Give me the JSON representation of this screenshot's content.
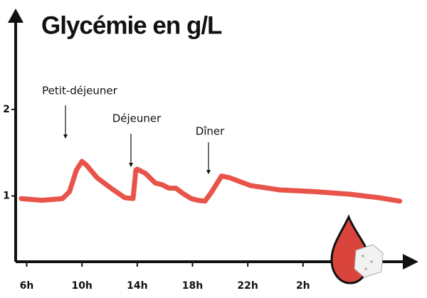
{
  "chart_data": {
    "type": "line",
    "title": "Glycémie en g/L",
    "x": [
      5.6,
      7.1,
      8.6,
      9.1,
      9.6,
      10.0,
      10.3,
      11.1,
      12.1,
      13.1,
      13.7,
      13.9,
      14.0,
      14.6,
      15.3,
      15.8,
      16.3,
      16.8,
      17.3,
      17.9,
      18.4,
      18.9,
      19.4,
      20.1,
      20.7,
      22.2,
      24.3,
      26.8,
      29.4,
      31.5,
      33.0
    ],
    "values": [
      0.97,
      0.95,
      0.97,
      1.05,
      1.3,
      1.4,
      1.36,
      1.21,
      1.09,
      0.98,
      0.97,
      1.3,
      1.31,
      1.26,
      1.15,
      1.13,
      1.09,
      1.09,
      1.03,
      0.97,
      0.95,
      0.94,
      1.05,
      1.23,
      1.21,
      1.12,
      1.07,
      1.05,
      1.02,
      0.98,
      0.94
    ],
    "color": "#e8544a",
    "xlim": [
      5.2,
      34.2
    ],
    "xticks": [
      {
        "value": 6,
        "label": "6h"
      },
      {
        "value": 10,
        "label": "10h"
      },
      {
        "value": 14,
        "label": "14h"
      },
      {
        "value": 18,
        "label": "18h"
      },
      {
        "value": 22,
        "label": "22h"
      },
      {
        "value": 26,
        "label": "2h"
      }
    ],
    "ylim": [
      0.24,
      3.1
    ],
    "yticks": [
      1,
      2
    ],
    "annotations": [
      "Petit-déjeuner",
      "Déjeuner",
      "Dîner"
    ]
  }
}
